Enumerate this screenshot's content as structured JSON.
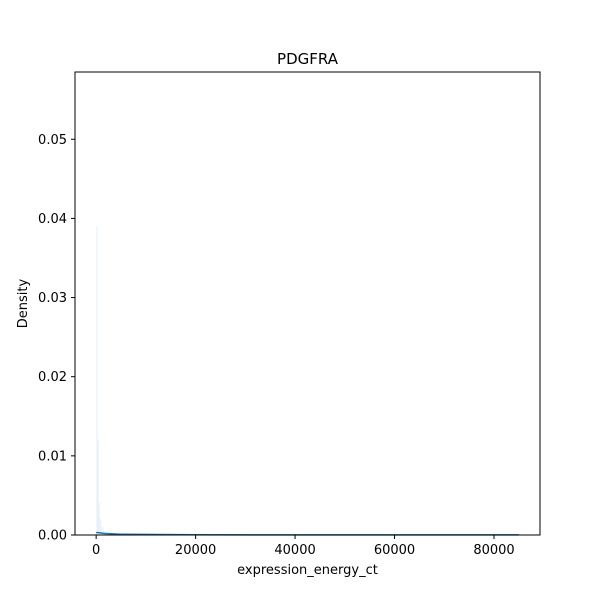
{
  "chart_data": {
    "type": "area",
    "title": "PDGFRA",
    "xlabel": "expression_energy_ct",
    "ylabel": "Density",
    "xlim": [
      -4250,
      89250
    ],
    "ylim": [
      0,
      0.0585
    ],
    "xticks": [
      0,
      20000,
      40000,
      60000,
      80000
    ],
    "xtick_labels": [
      "0",
      "20000",
      "40000",
      "60000",
      "80000"
    ],
    "yticks": [
      0,
      0.01,
      0.02,
      0.03,
      0.04,
      0.05
    ],
    "ytick_labels": [
      "0.00",
      "0.01",
      "0.02",
      "0.03",
      "0.04",
      "0.05"
    ],
    "grid": false,
    "series": [
      {
        "kind": "histogram",
        "color": "#1f77b4",
        "x": [
          0,
          250,
          500,
          750,
          1000,
          1500,
          2000,
          3000,
          85000
        ],
        "y": [
          0.039,
          0.012,
          0.004,
          0.002,
          0.001,
          0.0005,
          0.0002,
          0.0001,
          0.0
        ]
      },
      {
        "kind": "density-line",
        "color": "#1f77b4",
        "x": [
          0,
          500,
          1500,
          5000,
          20000,
          40000,
          60000,
          80000,
          85000
        ],
        "y": [
          0.0003,
          0.0003,
          0.0002,
          0.0001,
          3e-05,
          1e-05,
          1e-05,
          1e-05,
          1e-05
        ]
      }
    ]
  }
}
